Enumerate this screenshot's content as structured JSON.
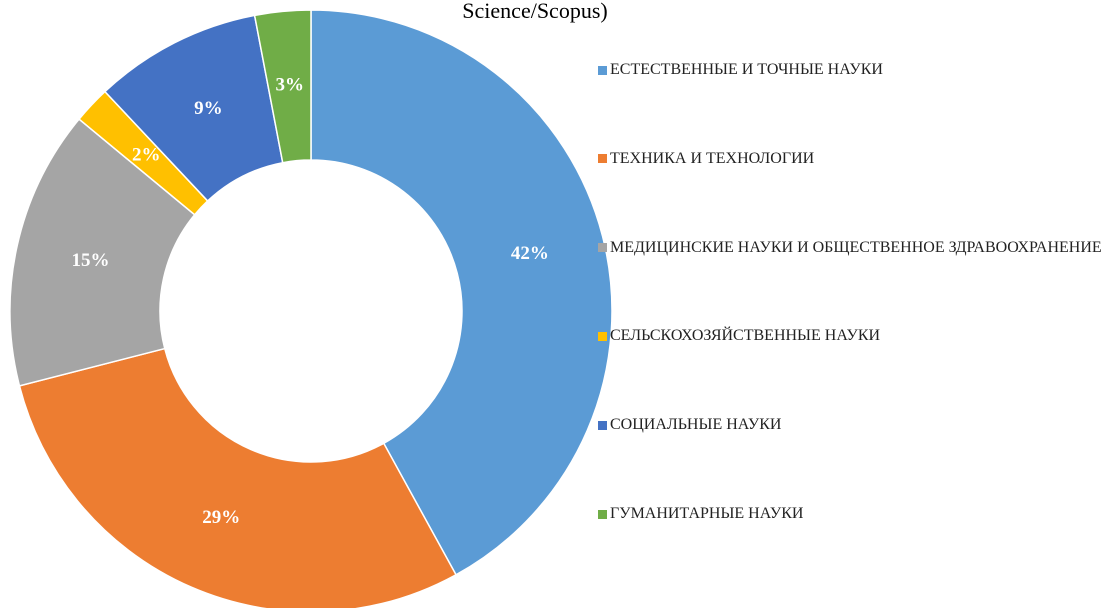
{
  "chart_data": {
    "type": "pie",
    "title": "Science/Scopus)",
    "categories": [
      "ЕСТЕСТВЕННЫЕ И ТОЧНЫЕ НАУКИ",
      "ТЕХНИКА И ТЕХНОЛОГИИ",
      "МЕДИЦИНСКИЕ НАУКИ И ОБЩЕСТВЕННОЕ ЗДРАВООХРАНЕНИЕ",
      "СЕЛЬСКОХОЗЯЙСТВЕННЫЕ НАУКИ",
      "СОЦИАЛЬНЫЕ НАУКИ",
      "ГУМАНИТАРНЫЕ НАУКИ"
    ],
    "values": [
      42,
      29,
      15,
      2,
      9,
      3
    ],
    "value_labels": [
      "42%",
      "29%",
      "15%",
      "2%",
      "9%",
      "3%"
    ],
    "colors": [
      "#5b9bd5",
      "#ed7d31",
      "#a5a5a5",
      "#ffc000",
      "#4472c4",
      "#70ad47"
    ],
    "donut": true,
    "legend": "right"
  }
}
